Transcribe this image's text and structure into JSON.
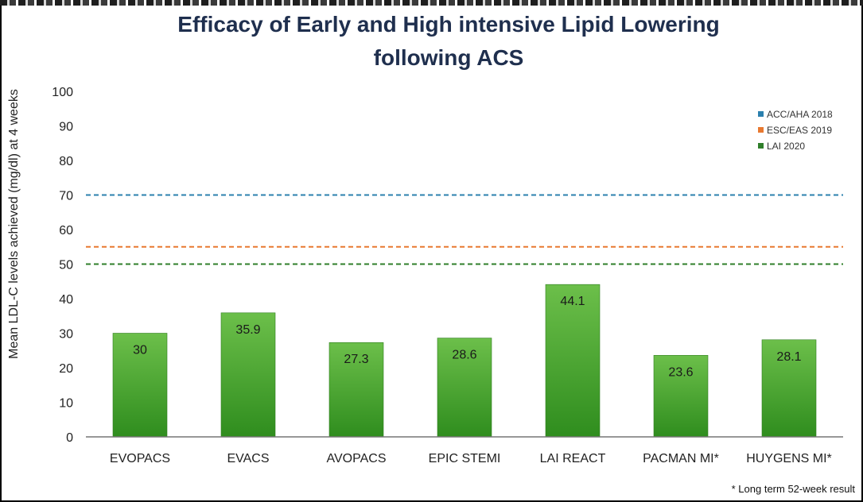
{
  "chart_data": {
    "type": "bar",
    "title_lines": [
      "Efficacy of Early and High intensive Lipid Lowering",
      "following ACS"
    ],
    "ylabel": "Mean LDL-C levels achieved (mg/dl) at 4 weeks",
    "ylim": [
      0,
      100
    ],
    "yticks": [
      0,
      10,
      20,
      30,
      40,
      50,
      60,
      70,
      80,
      90,
      100
    ],
    "categories": [
      "EVOPACS",
      "EVACS",
      "AVOPACS",
      "EPIC STEMI",
      "LAI REACT",
      "PACMAN MI*",
      "HUYGENS MI*"
    ],
    "values": [
      30,
      35.9,
      27.3,
      28.6,
      44.1,
      23.6,
      28.1
    ],
    "value_labels": [
      "30",
      "35.9",
      "27.3",
      "28.6",
      "44.1",
      "23.6",
      "28.1"
    ],
    "bar_color": "#3f9a28",
    "grid": false,
    "legend_position": "top-right",
    "reference_lines": [
      {
        "name": "ACC/AHA 2018",
        "value": 70,
        "color": "#2b80ae"
      },
      {
        "name": "ESC/EAS 2019",
        "value": 55,
        "color": "#e87930"
      },
      {
        "name": "LAI 2020",
        "value": 50,
        "color": "#2f7f2a"
      }
    ],
    "footnote": "* Long term 52-week result"
  }
}
